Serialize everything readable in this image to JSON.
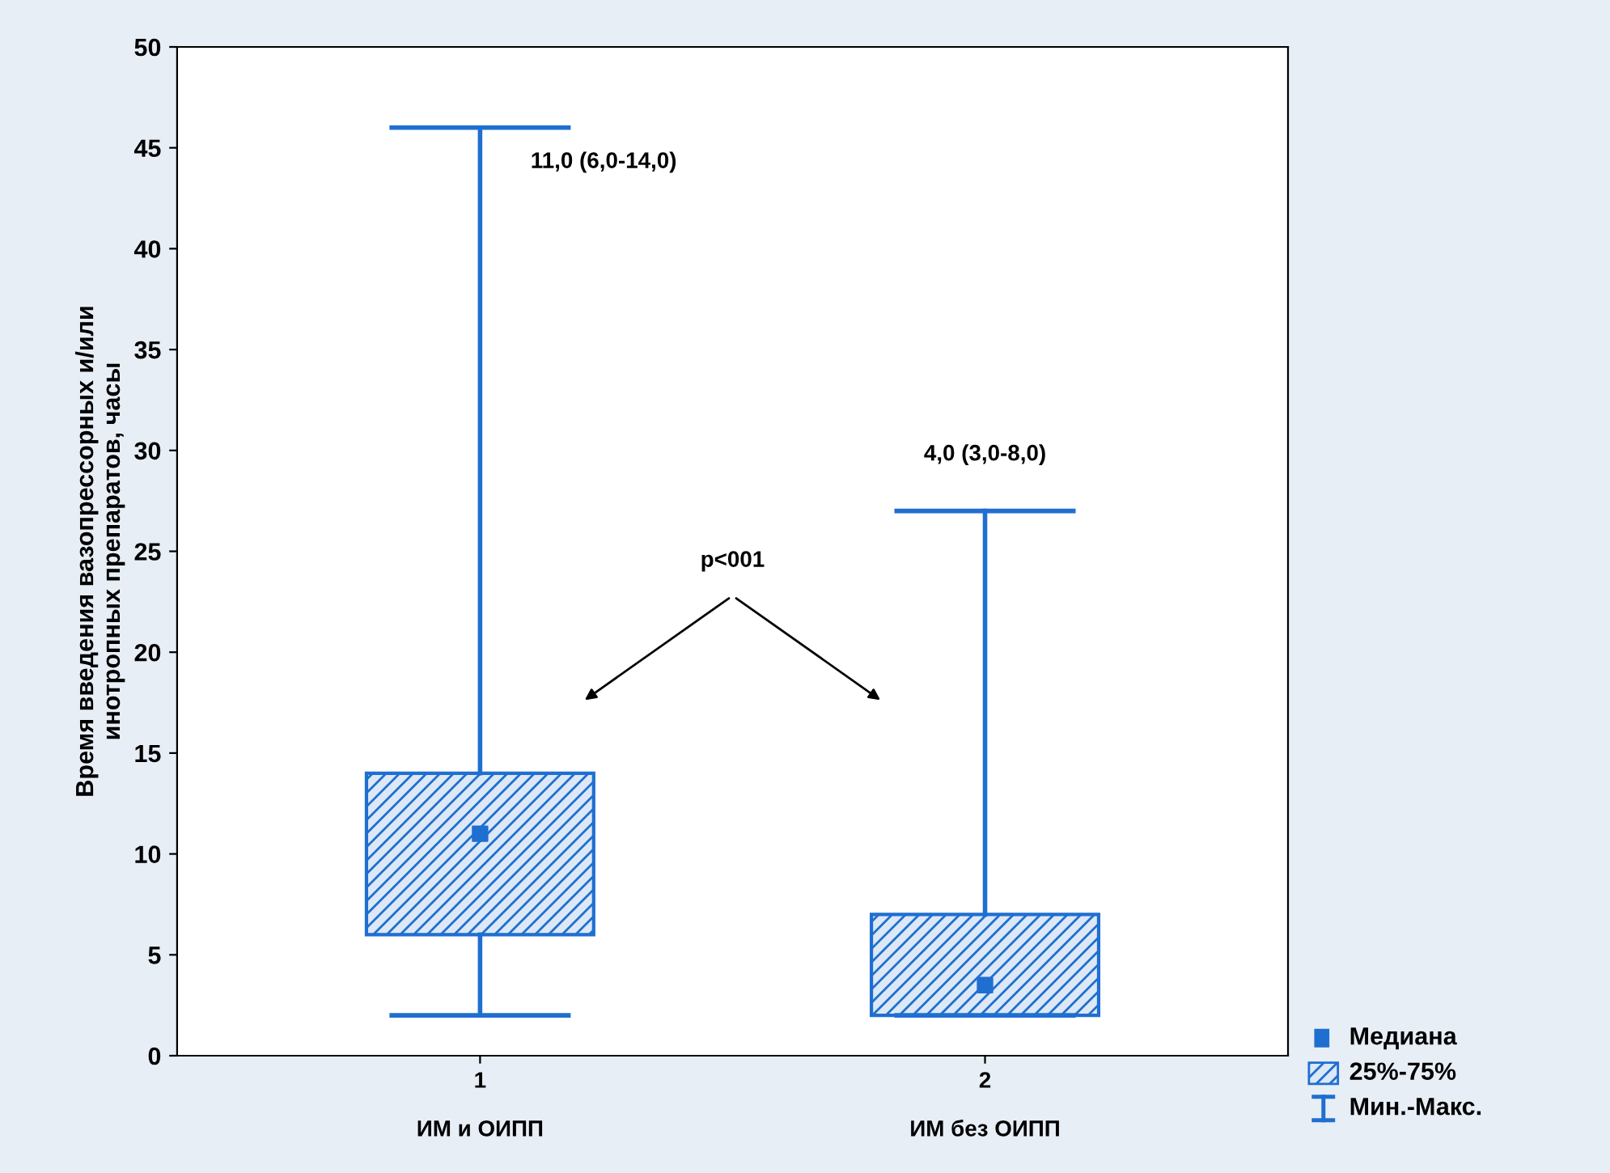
{
  "chart_data": {
    "type": "box",
    "ylabel": "Время введения вазопрессорных и/или\nинотропных препаратов, часы",
    "categories": [
      "1\n\nИМ и ОИПП",
      "2\n\nИМ без ОИПП"
    ],
    "boxes": [
      {
        "low": 2,
        "q1": 6,
        "median": 11,
        "q3": 14,
        "high": 46
      },
      {
        "low": 2,
        "q1": 2,
        "median": 3.5,
        "q3": 7,
        "high": 27
      }
    ],
    "color": "#1f6fd0",
    "ylim": [
      0,
      50
    ],
    "yticks": [
      0,
      5,
      10,
      15,
      20,
      25,
      30,
      35,
      40,
      45,
      50
    ],
    "grid": false,
    "annotations": [
      "11,0 (6,0-14,0)",
      "4,0 (3,0-8,0)",
      "p<001",
      "Медиана",
      "25%-75%",
      "Мин.-Макс."
    ]
  }
}
